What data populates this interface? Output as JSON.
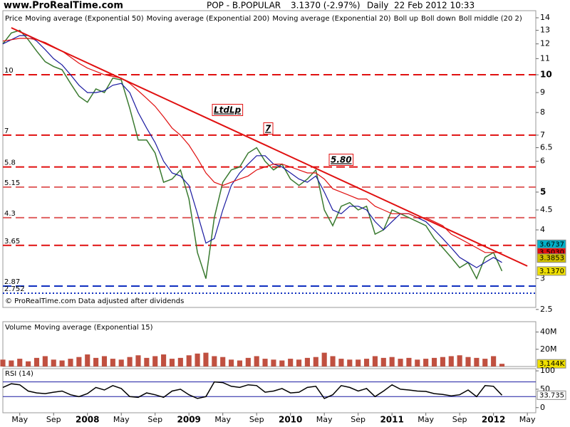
{
  "header": {
    "site": "www.ProRealTime.com",
    "symbol": "POP - B.POPULAR",
    "last": "3.1370 (-2.97%)",
    "period": "Daily",
    "datetime": "22 Feb 2012 10:33"
  },
  "chart_data": [
    {
      "type": "line",
      "log_scale": true,
      "footer": "© ProRealTime.com  Data adjusted after dividends",
      "legend": [
        {
          "text": "Price",
          "color": "#000000"
        },
        {
          "text": "Moving average (Exponential 50)",
          "color": "#1a1aa0"
        },
        {
          "text": "Moving average (Exponential 200)",
          "color": "#e01010"
        },
        {
          "text": "Moving average (Exponential 20)",
          "color": "#d0c000"
        },
        {
          "text": "Boll up",
          "color": "#00b0c8"
        },
        {
          "text": "Boll down",
          "color": "#00b0c8"
        },
        {
          "text": "Boll middle (20 2)",
          "color": "#d0c000"
        }
      ],
      "x": [
        "2007-03",
        "2007-04",
        "2007-05",
        "2007-06",
        "2007-07",
        "2007-08",
        "2007-09",
        "2007-10",
        "2007-11",
        "2007-12",
        "2008-01",
        "2008-02",
        "2008-03",
        "2008-04",
        "2008-05",
        "2008-06",
        "2008-07",
        "2008-08",
        "2008-09",
        "2008-10",
        "2008-11",
        "2008-12",
        "2009-01",
        "2009-02",
        "2009-03",
        "2009-04",
        "2009-05",
        "2009-06",
        "2009-07",
        "2009-08",
        "2009-09",
        "2009-10",
        "2009-11",
        "2009-12",
        "2010-01",
        "2010-02",
        "2010-03",
        "2010-04",
        "2010-05",
        "2010-06",
        "2010-07",
        "2010-08",
        "2010-09",
        "2010-10",
        "2010-11",
        "2010-12",
        "2011-01",
        "2011-02",
        "2011-03",
        "2011-04",
        "2011-05",
        "2011-06",
        "2011-07",
        "2011-08",
        "2011-09",
        "2011-10",
        "2011-11",
        "2011-12",
        "2012-01",
        "2012-02"
      ],
      "series": [
        {
          "color": "#3a7a30",
          "values": [
            12.0,
            12.8,
            13.0,
            12.3,
            11.5,
            10.8,
            10.5,
            10.3,
            9.5,
            8.8,
            8.5,
            9.2,
            9.0,
            9.8,
            9.7,
            8.2,
            6.8,
            6.8,
            6.3,
            5.3,
            5.4,
            5.7,
            4.8,
            3.5,
            3.0,
            4.3,
            5.3,
            5.7,
            5.8,
            6.3,
            6.5,
            6.0,
            5.7,
            5.9,
            5.4,
            5.2,
            5.4,
            5.7,
            4.5,
            4.1,
            4.6,
            4.7,
            4.5,
            4.6,
            3.9,
            4.0,
            4.5,
            4.4,
            4.3,
            4.2,
            4.1,
            3.8,
            3.6,
            3.4,
            3.2,
            3.3,
            3.0,
            3.4,
            3.5,
            3.137
          ]
        },
        {
          "color": "#1a1aa0",
          "values": [
            12.0,
            12.3,
            12.6,
            12.6,
            12.2,
            11.6,
            11.0,
            10.6,
            10.0,
            9.4,
            9.0,
            9.0,
            9.1,
            9.4,
            9.5,
            9.0,
            8.0,
            7.3,
            6.7,
            6.0,
            5.6,
            5.5,
            5.2,
            4.4,
            3.7,
            3.8,
            4.5,
            5.2,
            5.6,
            5.9,
            6.2,
            6.2,
            5.9,
            5.8,
            5.6,
            5.4,
            5.3,
            5.5,
            5.0,
            4.5,
            4.4,
            4.6,
            4.6,
            4.5,
            4.2,
            4.0,
            4.2,
            4.4,
            4.4,
            4.3,
            4.2,
            4.0,
            3.8,
            3.6,
            3.4,
            3.3,
            3.2,
            3.3,
            3.4,
            3.3
          ]
        },
        {
          "color": "#e01010",
          "values": [
            12.2,
            12.3,
            12.4,
            12.4,
            12.3,
            12.1,
            11.8,
            11.5,
            11.1,
            10.7,
            10.4,
            10.2,
            10.0,
            9.9,
            9.8,
            9.5,
            9.1,
            8.7,
            8.3,
            7.8,
            7.3,
            7.0,
            6.6,
            6.1,
            5.6,
            5.3,
            5.2,
            5.3,
            5.4,
            5.5,
            5.7,
            5.8,
            5.9,
            5.9,
            5.8,
            5.7,
            5.6,
            5.6,
            5.4,
            5.1,
            5.0,
            4.9,
            4.8,
            4.8,
            4.6,
            4.5,
            4.4,
            4.4,
            4.4,
            4.3,
            4.3,
            4.2,
            4.1,
            3.9,
            3.8,
            3.7,
            3.6,
            3.5,
            3.5,
            3.5
          ]
        }
      ],
      "hlines": [
        {
          "value": 10,
          "color": "#e01010"
        },
        {
          "value": 7,
          "color": "#e01010"
        },
        {
          "value": 5.8,
          "color": "#e01010"
        },
        {
          "value": 5.15,
          "color": "#e06060"
        },
        {
          "value": 4.3,
          "color": "#e06060"
        },
        {
          "value": 3.65,
          "color": "#e01010"
        },
        {
          "value": 2.87,
          "color": "#1030c0"
        },
        {
          "value": 2.752,
          "color": "#1030c0",
          "dotted": true
        }
      ],
      "trendline": {
        "x": [
          "2007-04",
          "2012-05"
        ],
        "y": [
          13.2,
          3.23
        ],
        "color": "#e01010"
      },
      "annotations": [
        {
          "text": "LtdLp"
        },
        {
          "text": "7"
        },
        {
          "text": "5.80"
        }
      ],
      "value_boxes": [
        {
          "value": 3.6737,
          "label": "3.6737",
          "color": "#00b0c8"
        },
        {
          "value": 3.503,
          "label": "3.5030",
          "color": "#e01010"
        },
        {
          "value": 3.3853,
          "label": "3.3853",
          "color": "#d0c000"
        },
        {
          "value": 3.137,
          "label": "3.1370",
          "color": "#f0e000"
        }
      ],
      "xlim": [
        "2007-03",
        "2012-06"
      ],
      "ylim": [
        2.53,
        14.6
      ],
      "yticks": [
        14,
        13,
        12,
        11,
        10,
        9,
        8,
        7,
        6.5,
        6,
        5,
        4.5,
        4,
        3,
        2.5
      ],
      "bold_ticks": [
        10,
        5
      ]
    },
    {
      "type": "bar",
      "legend": [
        {
          "text": "Volume",
          "color": "#e01010"
        },
        {
          "text": "Moving average (Exponential 15)",
          "color": "#1a1aa0"
        }
      ],
      "x": [
        "2007-03",
        "2007-04",
        "2007-05",
        "2007-06",
        "2007-07",
        "2007-08",
        "2007-09",
        "2007-10",
        "2007-11",
        "2007-12",
        "2008-01",
        "2008-02",
        "2008-03",
        "2008-04",
        "2008-05",
        "2008-06",
        "2008-07",
        "2008-08",
        "2008-09",
        "2008-10",
        "2008-11",
        "2008-12",
        "2009-01",
        "2009-02",
        "2009-03",
        "2009-04",
        "2009-05",
        "2009-06",
        "2009-07",
        "2009-08",
        "2009-09",
        "2009-10",
        "2009-11",
        "2009-12",
        "2010-01",
        "2010-02",
        "2010-03",
        "2010-04",
        "2010-05",
        "2010-06",
        "2010-07",
        "2010-08",
        "2010-09",
        "2010-10",
        "2010-11",
        "2010-12",
        "2011-01",
        "2011-02",
        "2011-03",
        "2011-04",
        "2011-05",
        "2011-06",
        "2011-07",
        "2011-08",
        "2011-09",
        "2011-10",
        "2011-11",
        "2011-12",
        "2012-01",
        "2012-02"
      ],
      "values": [
        8000000,
        7000000,
        9000000,
        6000000,
        10000000,
        12000000,
        8000000,
        7000000,
        9000000,
        11000000,
        14000000,
        10000000,
        12000000,
        9000000,
        8000000,
        11000000,
        13000000,
        10000000,
        12000000,
        14000000,
        9000000,
        10000000,
        13000000,
        15000000,
        16000000,
        12000000,
        11000000,
        8000000,
        7000000,
        10000000,
        12000000,
        9000000,
        8000000,
        7000000,
        9000000,
        8000000,
        10000000,
        11000000,
        16000000,
        12000000,
        9000000,
        8000000,
        8000000,
        9000000,
        12000000,
        10000000,
        11000000,
        9000000,
        10000000,
        8000000,
        9000000,
        10000000,
        11000000,
        12000000,
        13000000,
        11000000,
        10000000,
        9000000,
        12000000,
        3144000
      ],
      "color": "#c05040",
      "value_boxes": [
        {
          "value": 3144000,
          "label": "3,144K",
          "color": "#f0e000"
        }
      ],
      "xlim": [
        "2007-03",
        "2012-06"
      ],
      "ylim": [
        0,
        52000000
      ],
      "yticks": [
        {
          "value": 40000000,
          "label": "40M"
        },
        {
          "value": 20000000,
          "label": "20M"
        }
      ]
    },
    {
      "type": "line",
      "title": "RSI (14)",
      "x": [
        "2007-03",
        "2007-04",
        "2007-05",
        "2007-06",
        "2007-07",
        "2007-08",
        "2007-09",
        "2007-10",
        "2007-11",
        "2007-12",
        "2008-01",
        "2008-02",
        "2008-03",
        "2008-04",
        "2008-05",
        "2008-06",
        "2008-07",
        "2008-08",
        "2008-09",
        "2008-10",
        "2008-11",
        "2008-12",
        "2009-01",
        "2009-02",
        "2009-03",
        "2009-04",
        "2009-05",
        "2009-06",
        "2009-07",
        "2009-08",
        "2009-09",
        "2009-10",
        "2009-11",
        "2009-12",
        "2010-01",
        "2010-02",
        "2010-03",
        "2010-04",
        "2010-05",
        "2010-06",
        "2010-07",
        "2010-08",
        "2010-09",
        "2010-10",
        "2010-11",
        "2010-12",
        "2011-01",
        "2011-02",
        "2011-03",
        "2011-04",
        "2011-05",
        "2011-06",
        "2011-07",
        "2011-08",
        "2011-09",
        "2011-10",
        "2011-11",
        "2011-12",
        "2012-01",
        "2012-02"
      ],
      "series": [
        {
          "color": "#000000",
          "values": [
            55,
            65,
            62,
            45,
            40,
            38,
            42,
            45,
            35,
            30,
            38,
            55,
            48,
            60,
            52,
            30,
            28,
            40,
            35,
            28,
            45,
            50,
            35,
            25,
            30,
            70,
            68,
            58,
            55,
            62,
            60,
            42,
            45,
            52,
            40,
            42,
            55,
            58,
            25,
            35,
            60,
            55,
            45,
            52,
            30,
            45,
            62,
            50,
            48,
            45,
            44,
            38,
            36,
            32,
            35,
            48,
            30,
            60,
            58,
            33.735
          ]
        }
      ],
      "hlines": [
        {
          "value": 70,
          "color": "#1a1aa0"
        },
        {
          "value": 30,
          "color": "#1a1aa0"
        }
      ],
      "value_boxes": [
        {
          "value": 33.735,
          "label": "33.735",
          "color": "#ffffff"
        }
      ],
      "xlim": [
        "2007-03",
        "2012-06"
      ],
      "ylim": [
        -14,
        106
      ],
      "yticks": [
        100,
        50,
        0
      ],
      "xticks": [
        {
          "value": "2007-05",
          "label": "May"
        },
        {
          "value": "2007-09",
          "label": "Sep"
        },
        {
          "value": "2008-01",
          "label": "2008"
        },
        {
          "value": "2008-05",
          "label": "May"
        },
        {
          "value": "2008-09",
          "label": "Sep"
        },
        {
          "value": "2009-01",
          "label": "2009"
        },
        {
          "value": "2009-05",
          "label": "May"
        },
        {
          "value": "2009-09",
          "label": "Sep"
        },
        {
          "value": "2010-01",
          "label": "2010"
        },
        {
          "value": "2010-05",
          "label": "May"
        },
        {
          "value": "2010-09",
          "label": "Sep"
        },
        {
          "value": "2011-01",
          "label": "2011"
        },
        {
          "value": "2011-05",
          "label": "May"
        },
        {
          "value": "2011-09",
          "label": "Sep"
        },
        {
          "value": "2012-01",
          "label": "2012"
        },
        {
          "value": "2012-05",
          "label": "May"
        }
      ]
    }
  ]
}
